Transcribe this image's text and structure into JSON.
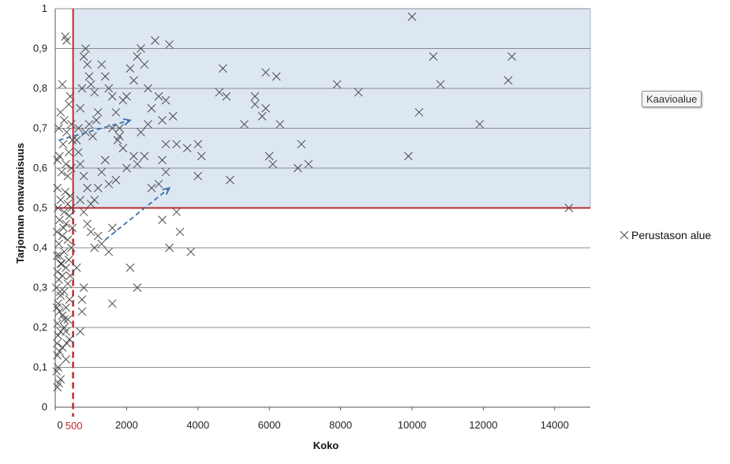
{
  "chart_area_tag": "Kaavioalue",
  "chart_data": {
    "type": "scatter",
    "title": "",
    "xlabel": "Koko",
    "ylabel": "Tarjonnan omavaraisuus",
    "xlim": [
      0,
      15000
    ],
    "ylim": [
      0,
      1
    ],
    "x_ticks": [
      "0",
      "2000",
      "4000",
      "6000",
      "8000",
      "10000",
      "12000",
      "14000"
    ],
    "y_ticks": [
      "0",
      "0,1",
      "0,2",
      "0,3",
      "0,4",
      "0,5",
      "0,6",
      "0,7",
      "0,8",
      "0,9",
      "1"
    ],
    "grid": "horizontal",
    "legend": "right",
    "reference_lines": {
      "x_solid": 500,
      "x_dashed": 500,
      "x_dashed_label": "500",
      "y_solid": 0.5
    },
    "highlight_region": {
      "x": [
        500,
        15000
      ],
      "y": [
        0.5,
        1
      ]
    },
    "arrows": [
      {
        "from": [
          100,
          0.67
        ],
        "to": [
          2100,
          0.72
        ]
      },
      {
        "from": [
          1400,
          0.42
        ],
        "to": [
          3200,
          0.55
        ]
      }
    ],
    "colors": {
      "region": "#dde7f2",
      "reference": "#c0282c",
      "arrow": "#3f6fa8",
      "marker": "#4a4a4a"
    },
    "series": [
      {
        "name": "Perustason alue",
        "marker": "x",
        "points": [
          [
            280,
            0.93
          ],
          [
            320,
            0.92
          ],
          [
            200,
            0.81
          ],
          [
            420,
            0.78
          ],
          [
            380,
            0.76
          ],
          [
            150,
            0.74
          ],
          [
            250,
            0.72
          ],
          [
            450,
            0.71
          ],
          [
            100,
            0.7
          ],
          [
            320,
            0.69
          ],
          [
            480,
            0.67
          ],
          [
            220,
            0.66
          ],
          [
            380,
            0.64
          ],
          [
            120,
            0.63
          ],
          [
            300,
            0.61
          ],
          [
            450,
            0.6
          ],
          [
            180,
            0.59
          ],
          [
            350,
            0.58
          ],
          [
            60,
            0.55
          ],
          [
            280,
            0.54
          ],
          [
            420,
            0.53
          ],
          [
            150,
            0.52
          ],
          [
            350,
            0.51
          ],
          [
            450,
            0.5
          ],
          [
            80,
            0.5
          ],
          [
            250,
            0.49
          ],
          [
            400,
            0.48
          ],
          [
            120,
            0.47
          ],
          [
            300,
            0.46
          ],
          [
            480,
            0.45
          ],
          [
            50,
            0.44
          ],
          [
            200,
            0.43
          ],
          [
            350,
            0.42
          ],
          [
            100,
            0.41
          ],
          [
            450,
            0.4
          ],
          [
            250,
            0.39
          ],
          [
            50,
            0.38
          ],
          [
            380,
            0.37
          ],
          [
            150,
            0.36
          ],
          [
            300,
            0.35
          ],
          [
            60,
            0.34
          ],
          [
            420,
            0.33
          ],
          [
            200,
            0.33
          ],
          [
            100,
            0.32
          ],
          [
            350,
            0.31
          ],
          [
            30,
            0.3
          ],
          [
            250,
            0.29
          ],
          [
            150,
            0.28
          ],
          [
            400,
            0.27
          ],
          [
            80,
            0.26
          ],
          [
            300,
            0.25
          ],
          [
            50,
            0.25
          ],
          [
            120,
            0.24
          ],
          [
            200,
            0.23
          ],
          [
            350,
            0.22
          ],
          [
            60,
            0.21
          ],
          [
            250,
            0.2
          ],
          [
            150,
            0.19
          ],
          [
            300,
            0.19
          ],
          [
            80,
            0.18
          ],
          [
            400,
            0.17
          ],
          [
            50,
            0.16
          ],
          [
            200,
            0.15
          ],
          [
            120,
            0.14
          ],
          [
            60,
            0.13
          ],
          [
            300,
            0.12
          ],
          [
            80,
            0.1
          ],
          [
            40,
            0.09
          ],
          [
            150,
            0.07
          ],
          [
            60,
            0.05
          ],
          [
            100,
            0.06
          ],
          [
            180,
            0.36
          ],
          [
            60,
            0.62
          ],
          [
            250,
            0.22
          ],
          [
            140,
            0.29
          ],
          [
            330,
            0.16
          ],
          [
            120,
            0.38
          ],
          [
            230,
            0.45
          ],
          [
            650,
            0.7
          ],
          [
            700,
            0.75
          ],
          [
            750,
            0.8
          ],
          [
            800,
            0.88
          ],
          [
            850,
            0.9
          ],
          [
            900,
            0.86
          ],
          [
            950,
            0.83
          ],
          [
            1000,
            0.81
          ],
          [
            1100,
            0.79
          ],
          [
            1200,
            0.74
          ],
          [
            1300,
            0.86
          ],
          [
            1400,
            0.83
          ],
          [
            1500,
            0.8
          ],
          [
            1600,
            0.78
          ],
          [
            1700,
            0.74
          ],
          [
            1800,
            0.7
          ],
          [
            1900,
            0.77
          ],
          [
            2000,
            0.78
          ],
          [
            2100,
            0.85
          ],
          [
            2200,
            0.82
          ],
          [
            2300,
            0.88
          ],
          [
            2400,
            0.9
          ],
          [
            2500,
            0.86
          ],
          [
            2600,
            0.8
          ],
          [
            2700,
            0.75
          ],
          [
            2800,
            0.92
          ],
          [
            2900,
            0.78
          ],
          [
            3000,
            0.72
          ],
          [
            3100,
            0.77
          ],
          [
            3200,
            0.91
          ],
          [
            3300,
            0.73
          ],
          [
            3400,
            0.66
          ],
          [
            3100,
            0.66
          ],
          [
            3000,
            0.62
          ],
          [
            3100,
            0.59
          ],
          [
            2900,
            0.56
          ],
          [
            2700,
            0.55
          ],
          [
            2500,
            0.63
          ],
          [
            2300,
            0.61
          ],
          [
            2200,
            0.63
          ],
          [
            2000,
            0.6
          ],
          [
            1900,
            0.65
          ],
          [
            1800,
            0.68
          ],
          [
            1700,
            0.57
          ],
          [
            1500,
            0.56
          ],
          [
            1400,
            0.62
          ],
          [
            1300,
            0.59
          ],
          [
            1200,
            0.55
          ],
          [
            1100,
            0.52
          ],
          [
            1000,
            0.51
          ],
          [
            900,
            0.55
          ],
          [
            800,
            0.58
          ],
          [
            700,
            0.61
          ],
          [
            650,
            0.64
          ],
          [
            600,
            0.67
          ],
          [
            700,
            0.52
          ],
          [
            800,
            0.49
          ],
          [
            900,
            0.46
          ],
          [
            1000,
            0.44
          ],
          [
            1100,
            0.4
          ],
          [
            1200,
            0.43
          ],
          [
            1300,
            0.41
          ],
          [
            1500,
            0.39
          ],
          [
            1600,
            0.45
          ],
          [
            2100,
            0.35
          ],
          [
            2300,
            0.3
          ],
          [
            1600,
            0.26
          ],
          [
            800,
            0.3
          ],
          [
            750,
            0.24
          ],
          [
            700,
            0.19
          ],
          [
            750,
            0.27
          ],
          [
            600,
            0.35
          ],
          [
            850,
            0.69
          ],
          [
            950,
            0.71
          ],
          [
            1050,
            0.68
          ],
          [
            1150,
            0.72
          ],
          [
            2400,
            0.69
          ],
          [
            2600,
            0.71
          ],
          [
            1750,
            0.67
          ],
          [
            1600,
            0.7
          ],
          [
            3000,
            0.47
          ],
          [
            3200,
            0.4
          ],
          [
            3400,
            0.49
          ],
          [
            3500,
            0.44
          ],
          [
            3800,
            0.39
          ],
          [
            3700,
            0.65
          ],
          [
            4000,
            0.66
          ],
          [
            4100,
            0.63
          ],
          [
            4000,
            0.58
          ],
          [
            4600,
            0.79
          ],
          [
            4700,
            0.85
          ],
          [
            4800,
            0.78
          ],
          [
            4900,
            0.57
          ],
          [
            5300,
            0.71
          ],
          [
            5600,
            0.78
          ],
          [
            5600,
            0.76
          ],
          [
            5800,
            0.73
          ],
          [
            5900,
            0.75
          ],
          [
            5900,
            0.84
          ],
          [
            6000,
            0.63
          ],
          [
            6100,
            0.61
          ],
          [
            6200,
            0.83
          ],
          [
            6300,
            0.71
          ],
          [
            6800,
            0.6
          ],
          [
            6900,
            0.66
          ],
          [
            7100,
            0.61
          ],
          [
            7900,
            0.81
          ],
          [
            8500,
            0.79
          ],
          [
            9900,
            0.63
          ],
          [
            10000,
            0.98
          ],
          [
            10200,
            0.74
          ],
          [
            10600,
            0.88
          ],
          [
            10800,
            0.81
          ],
          [
            11900,
            0.71
          ],
          [
            12700,
            0.82
          ],
          [
            12800,
            0.88
          ],
          [
            14400,
            0.5
          ]
        ]
      }
    ]
  }
}
